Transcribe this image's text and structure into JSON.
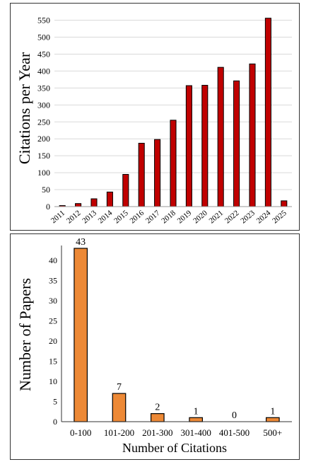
{
  "chart_data": [
    {
      "type": "bar",
      "ylabel": "Citations per Year",
      "xlabel": "",
      "categories": [
        "2011",
        "2012",
        "2013",
        "2014",
        "2015",
        "2016",
        "2017",
        "2018",
        "2019",
        "2020",
        "2021",
        "2022",
        "2023",
        "2024",
        "2025"
      ],
      "values": [
        3,
        9,
        23,
        43,
        95,
        187,
        198,
        255,
        357,
        358,
        411,
        371,
        421,
        556,
        17
      ],
      "ylim": [
        0,
        570
      ],
      "yticks": [
        0,
        50,
        100,
        150,
        200,
        250,
        300,
        350,
        400,
        450,
        500,
        550
      ],
      "grid": true,
      "bar_color": "#c00000",
      "x_tick_rotation": "diagonal"
    },
    {
      "type": "bar",
      "ylabel": "Number of Papers",
      "xlabel": "Number of Citations",
      "categories": [
        "0-100",
        "101-200",
        "201-300",
        "301-400",
        "401-500",
        "500+"
      ],
      "values": [
        43,
        7,
        2,
        1,
        0,
        1
      ],
      "data_labels": [
        "43",
        "7",
        "2",
        "1",
        "0",
        "1"
      ],
      "ylim": [
        0,
        43
      ],
      "yticks": [
        0,
        5,
        10,
        15,
        20,
        25,
        30,
        35,
        40
      ],
      "grid": false,
      "bar_color": "#ed8936"
    }
  ]
}
